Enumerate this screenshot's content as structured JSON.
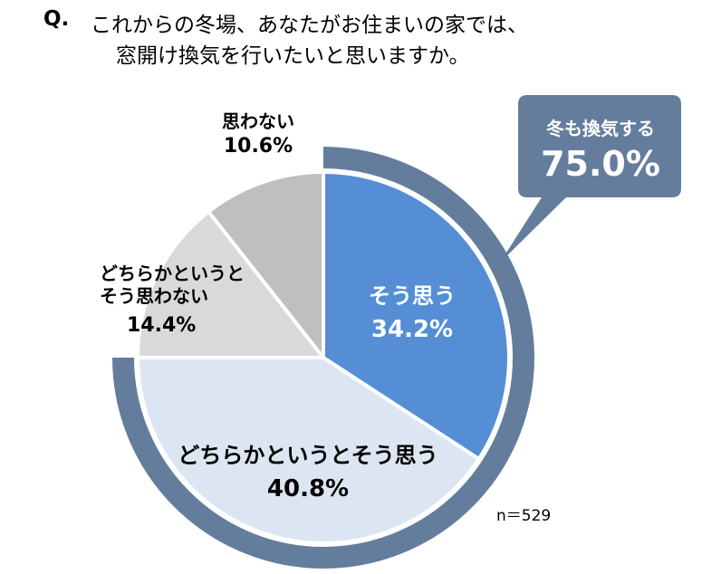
{
  "chart_data": {
    "type": "pie",
    "title_prefix": "Q.",
    "title": [
      "これからの冬場、あなたがお住まいの家では、",
      "窓開け換気を行いたいと思いますか。"
    ],
    "categories": [
      "そう思う",
      "どちらかというとそう思う",
      "どちらかというと\nそう思わない",
      "思わない"
    ],
    "values": [
      34.2,
      40.8,
      14.4,
      10.6
    ],
    "value_labels": [
      "34.2%",
      "40.8%",
      "14.4%",
      "10.6%"
    ],
    "colors": [
      "#558ed5",
      "#dce6f2",
      "#d9d9d9",
      "#bfbfbf"
    ],
    "annotation": {
      "label": "冬も換気する",
      "value": 75.0,
      "value_label": "75.0%",
      "color": "#647d9c"
    },
    "note": "n＝529"
  }
}
